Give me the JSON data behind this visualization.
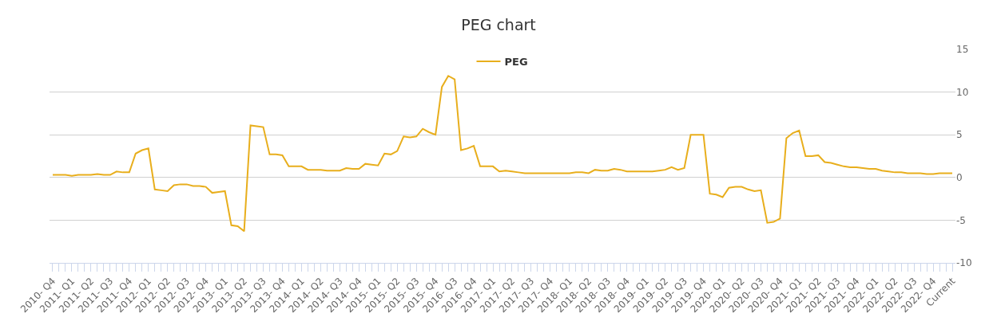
{
  "chart_data": {
    "type": "line",
    "title": "PEG chart",
    "categories": [
      "2010- Q4",
      null,
      null,
      "2011- Q1",
      null,
      null,
      "2011- Q2",
      null,
      null,
      "2011- Q3",
      null,
      null,
      "2011- Q4",
      null,
      null,
      "2012- Q1",
      null,
      null,
      "2012- Q2",
      null,
      null,
      "2012- Q3",
      null,
      null,
      "2012- Q4",
      null,
      null,
      "2013- Q1",
      null,
      null,
      "2013- Q2",
      null,
      null,
      "2013- Q3",
      null,
      null,
      "2013- Q4",
      null,
      null,
      "2014- Q1",
      null,
      null,
      "2014- Q2",
      null,
      null,
      "2014- Q3",
      null,
      null,
      "2014- Q4",
      null,
      null,
      "2015- Q1",
      null,
      null,
      "2015- Q2",
      null,
      null,
      "2015- Q3",
      null,
      null,
      "2015- Q4",
      null,
      null,
      "2016- Q3",
      null,
      null,
      "2016- Q4",
      null,
      null,
      "2017- Q1",
      null,
      null,
      "2017- Q2",
      null,
      null,
      "2017- Q3",
      null,
      null,
      "2017- Q4",
      null,
      null,
      "2018- Q1",
      null,
      null,
      "2018- Q2",
      null,
      null,
      "2018- Q3",
      null,
      null,
      "2018- Q4",
      null,
      null,
      "2019- Q1",
      null,
      null,
      "2019- Q2",
      null,
      null,
      "2019- Q3",
      null,
      null,
      "2019- Q4",
      null,
      null,
      "2020- Q1",
      null,
      null,
      "2020- Q2",
      null,
      null,
      "2020- Q3",
      null,
      null,
      "2020- Q4",
      null,
      null,
      "2021- Q1",
      null,
      null,
      "2021- Q2",
      null,
      null,
      "2021- Q3",
      null,
      null,
      "2021- Q4",
      null,
      null,
      "2022- Q1",
      null,
      null,
      "2022- Q2",
      null,
      null,
      "2022- Q3",
      null,
      null,
      "2022- Q4",
      null,
      null,
      "Current"
    ],
    "series": [
      {
        "name": "PEG",
        "color": "#e8ae1c",
        "values": [
          0.3,
          0.3,
          0.3,
          0.2,
          0.3,
          0.3,
          0.3,
          0.4,
          0.3,
          0.3,
          0.7,
          0.6,
          0.6,
          2.8,
          3.2,
          3.4,
          -1.4,
          -1.5,
          -1.6,
          -0.9,
          -0.8,
          -0.8,
          -1.0,
          -1.0,
          -1.1,
          -1.8,
          -1.7,
          -1.6,
          -5.6,
          -5.7,
          -6.3,
          6.1,
          6.0,
          5.9,
          2.7,
          2.7,
          2.6,
          1.3,
          1.3,
          1.3,
          0.9,
          0.9,
          0.9,
          0.8,
          0.8,
          0.8,
          1.1,
          1.0,
          1.0,
          1.6,
          1.5,
          1.4,
          2.8,
          2.7,
          3.1,
          4.8,
          4.7,
          4.8,
          5.7,
          5.3,
          5.0,
          10.6,
          11.9,
          11.5,
          3.2,
          3.4,
          3.7,
          1.3,
          1.3,
          1.3,
          0.7,
          0.8,
          0.7,
          0.6,
          0.5,
          0.5,
          0.5,
          0.5,
          0.5,
          0.5,
          0.5,
          0.5,
          0.6,
          0.6,
          0.5,
          0.9,
          0.8,
          0.8,
          1.0,
          0.9,
          0.7,
          0.7,
          0.7,
          0.7,
          0.7,
          0.8,
          0.9,
          1.2,
          0.9,
          1.1,
          5.0,
          5.0,
          5.0,
          -1.9,
          -2.0,
          -2.3,
          -1.2,
          -1.1,
          -1.1,
          -1.4,
          -1.6,
          -1.5,
          -5.3,
          -5.2,
          -4.8,
          4.6,
          5.2,
          5.5,
          2.5,
          2.5,
          2.6,
          1.8,
          1.7,
          1.5,
          1.3,
          1.2,
          1.2,
          1.1,
          1.0,
          1.0,
          0.8,
          0.7,
          0.6,
          0.6,
          0.5,
          0.5,
          0.5,
          0.4,
          0.4,
          0.5,
          0.5,
          0.5
        ]
      }
    ],
    "ylim": [
      -10,
      15
    ],
    "yticks": [
      -10,
      -5,
      0,
      5,
      10,
      15
    ],
    "grid": "y",
    "legend": "top",
    "line_style": "solid"
  }
}
